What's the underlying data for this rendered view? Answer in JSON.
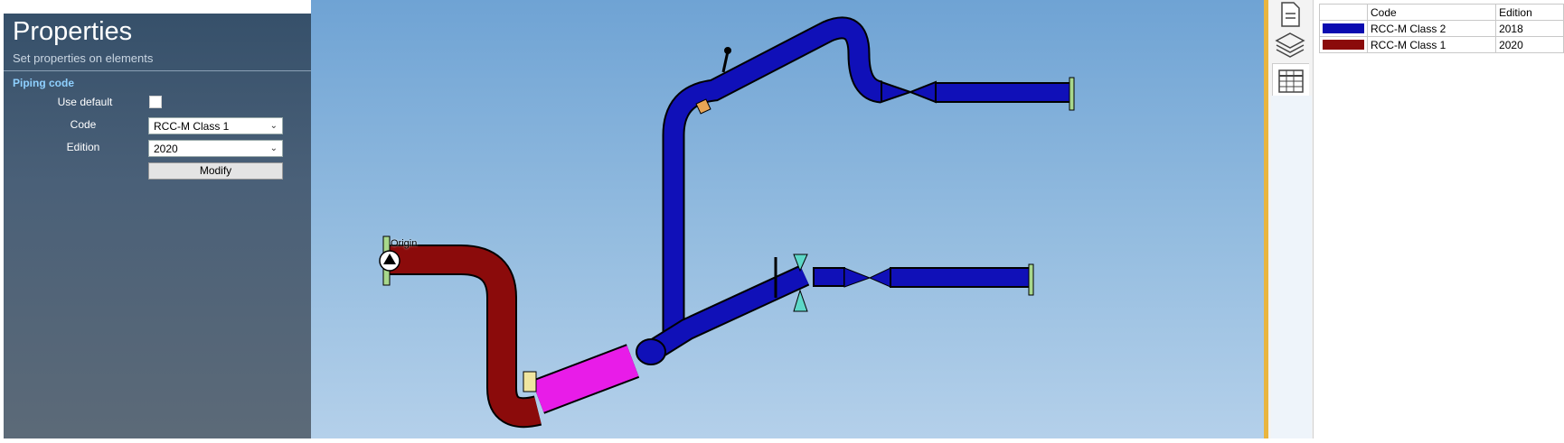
{
  "properties_panel": {
    "title": "Properties",
    "subtitle": "Set properties on elements",
    "section": "Piping code",
    "use_default_label": "Use default",
    "code_label": "Code",
    "code_value": "RCC-M Class 1",
    "edition_label": "Edition",
    "edition_value": "2020",
    "modify_label": "Modify"
  },
  "viewport": {
    "origin_label": "Origin"
  },
  "tabs": [
    {
      "icon": "document-icon"
    },
    {
      "icon": "layers-icon"
    },
    {
      "icon": "table-icon",
      "active": true
    }
  ],
  "code_table": {
    "headers": [
      "",
      "Code",
      "Edition"
    ],
    "rows": [
      {
        "color": "#0b0bb0",
        "code": "RCC-M Class 2",
        "edition": "2018"
      },
      {
        "color": "#8b0b0b",
        "code": "RCC-M Class 1",
        "edition": "2020"
      }
    ]
  },
  "colors": {
    "class1_pipe": "#8b0b0b",
    "class2_pipe": "#1010b8",
    "selected_pipe": "#e81ce8",
    "accent_divider": "#e9b53f"
  }
}
